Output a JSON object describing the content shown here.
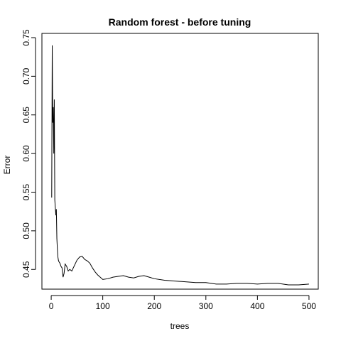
{
  "chart_data": {
    "type": "line",
    "title": "Random forest - before tuning",
    "xlabel": "trees",
    "ylabel": "Error",
    "xlim": [
      -18,
      518
    ],
    "ylim": [
      0.4245,
      0.7555
    ],
    "grid": false,
    "legend": "none",
    "x_ticks": [
      0,
      100,
      200,
      300,
      400,
      500
    ],
    "x_tick_labels": [
      "0",
      "100",
      "200",
      "300",
      "400",
      "500"
    ],
    "y_ticks": [
      0.45,
      0.5,
      0.55,
      0.6,
      0.65,
      0.7,
      0.75
    ],
    "y_tick_labels": [
      "0.45",
      "0.50",
      "0.55",
      "0.60",
      "0.65",
      "0.70",
      "0.75"
    ],
    "series": [
      {
        "color": "#000000",
        "x": [
          1,
          2,
          3,
          4,
          5,
          6,
          7,
          8,
          9,
          10,
          11,
          12,
          13,
          14,
          15,
          17,
          19,
          21,
          23,
          25,
          27,
          30,
          33,
          36,
          40,
          45,
          50,
          55,
          60,
          65,
          70,
          75,
          80,
          85,
          90,
          95,
          100,
          110,
          120,
          130,
          140,
          150,
          160,
          170,
          180,
          190,
          200,
          220,
          240,
          260,
          280,
          300,
          320,
          340,
          360,
          380,
          400,
          420,
          440,
          460,
          480,
          500
        ],
        "y": [
          0.543,
          0.74,
          0.64,
          0.66,
          0.6,
          0.67,
          0.54,
          0.53,
          0.52,
          0.528,
          0.49,
          0.476,
          0.466,
          0.462,
          0.46,
          0.458,
          0.454,
          0.452,
          0.44,
          0.445,
          0.457,
          0.454,
          0.448,
          0.45,
          0.448,
          0.455,
          0.462,
          0.466,
          0.467,
          0.463,
          0.461,
          0.458,
          0.452,
          0.447,
          0.443,
          0.44,
          0.437,
          0.438,
          0.44,
          0.441,
          0.442,
          0.44,
          0.439,
          0.441,
          0.442,
          0.44,
          0.438,
          0.436,
          0.435,
          0.434,
          0.433,
          0.433,
          0.431,
          0.431,
          0.432,
          0.432,
          0.431,
          0.432,
          0.432,
          0.43,
          0.43,
          0.431
        ]
      }
    ]
  }
}
